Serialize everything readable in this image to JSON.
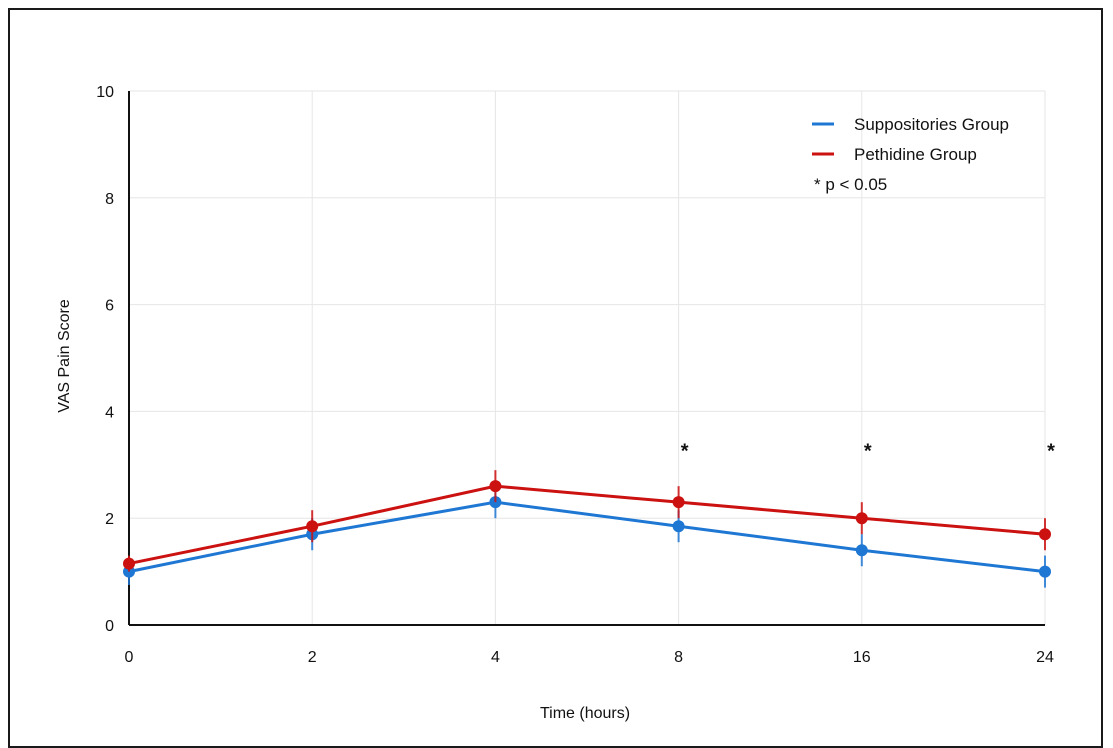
{
  "chart_data": {
    "type": "line",
    "title": "",
    "xlabel": "Time (hours)",
    "ylabel": "VAS Pain Score",
    "categories": [
      "0",
      "2",
      "4",
      "8",
      "16",
      "24"
    ],
    "ylim": [
      0,
      10
    ],
    "yticks": [
      "0",
      "2",
      "4",
      "6",
      "8",
      "10"
    ],
    "grid": true,
    "legend_position": "top-right",
    "series": [
      {
        "name": "Suppositories Group",
        "color": "#1f77d4",
        "values": [
          1.0,
          1.7,
          2.3,
          1.85,
          1.4,
          1.0
        ],
        "error": [
          0.25,
          0.3,
          0.3,
          0.3,
          0.3,
          0.3
        ]
      },
      {
        "name": "Pethidine Group",
        "color": "#cc1111",
        "values": [
          1.15,
          1.85,
          2.6,
          2.3,
          2.0,
          1.7
        ],
        "error": [
          0.15,
          0.3,
          0.3,
          0.3,
          0.3,
          0.3
        ]
      }
    ],
    "annotations": [
      {
        "category": "8",
        "y": 3.4,
        "text": "*"
      },
      {
        "category": "16",
        "y": 3.4,
        "text": "*"
      },
      {
        "category": "24",
        "y": 3.4,
        "text": "*"
      }
    ],
    "legend_note": "* p < 0.05"
  }
}
